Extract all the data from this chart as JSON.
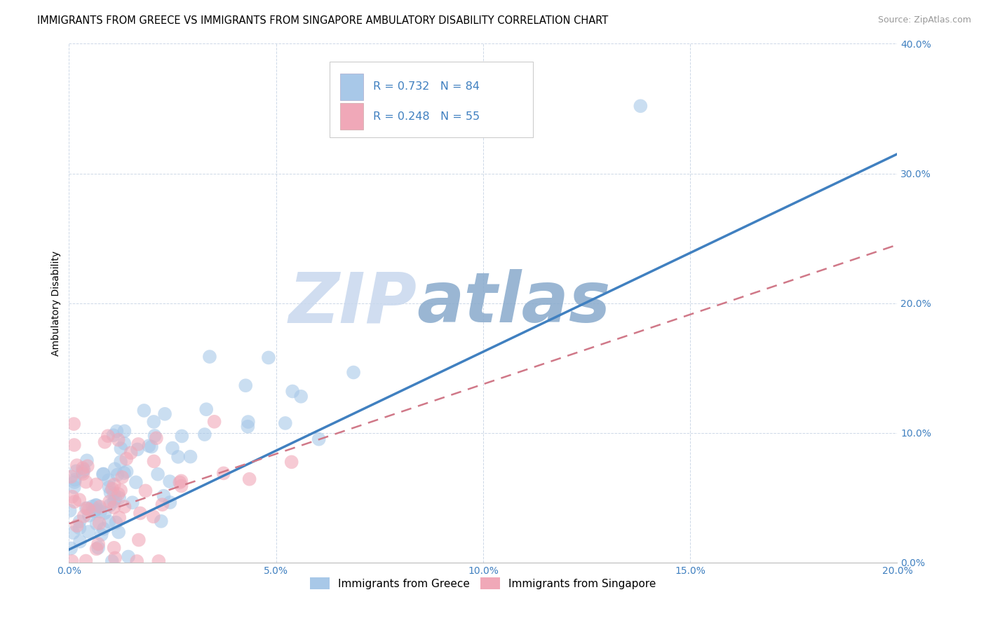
{
  "title": "IMMIGRANTS FROM GREECE VS IMMIGRANTS FROM SINGAPORE AMBULATORY DISABILITY CORRELATION CHART",
  "source": "Source: ZipAtlas.com",
  "ylabel": "Ambulatory Disability",
  "xlim": [
    0.0,
    0.2
  ],
  "ylim": [
    0.0,
    0.4
  ],
  "xticks": [
    0.0,
    0.05,
    0.1,
    0.15,
    0.2
  ],
  "yticks": [
    0.0,
    0.1,
    0.2,
    0.3,
    0.4
  ],
  "xtick_labels": [
    "0.0%",
    "5.0%",
    "10.0%",
    "15.0%",
    "20.0%"
  ],
  "ytick_labels": [
    "0.0%",
    "10.0%",
    "20.0%",
    "30.0%",
    "40.0%"
  ],
  "legend_labels": [
    "Immigrants from Greece",
    "Immigrants from Singapore"
  ],
  "greece_color": "#a8c8e8",
  "singapore_color": "#f0a8b8",
  "greece_line_color": "#4080c0",
  "singapore_line_color": "#d07888",
  "watermark": "ZIPatlas",
  "watermark_color": "#d0e0f0",
  "background_color": "#ffffff",
  "title_fontsize": 10.5,
  "tick_fontsize": 10,
  "legend_fontsize": 11,
  "greece_R": 0.732,
  "greece_N": 84,
  "singapore_R": 0.248,
  "singapore_N": 55,
  "greece_line_x0": 0.0,
  "greece_line_y0": 0.01,
  "greece_line_x1": 0.2,
  "greece_line_y1": 0.315,
  "singapore_line_x0": 0.0,
  "singapore_line_y0": 0.03,
  "singapore_line_x1": 0.2,
  "singapore_line_y1": 0.245
}
